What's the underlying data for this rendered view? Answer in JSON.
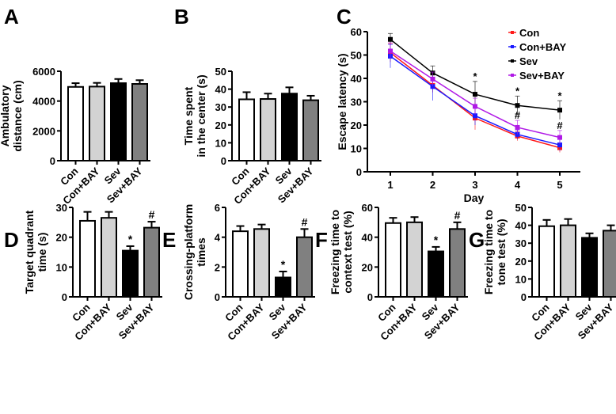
{
  "chart_data": [
    {
      "id": "A",
      "type": "bar",
      "ylabel": [
        "Ambulatory",
        "distance (cm)"
      ],
      "categories": [
        "Con",
        "Con+BAY",
        "Sev",
        "Sev+BAY"
      ],
      "values": [
        4950,
        4970,
        5200,
        5150
      ],
      "errors": [
        250,
        250,
        280,
        250
      ],
      "ylim": [
        0,
        6000
      ],
      "yticks": [
        0,
        2000,
        4000,
        6000
      ],
      "annotations": [
        "",
        "",
        "",
        ""
      ]
    },
    {
      "id": "B",
      "type": "bar",
      "ylabel": [
        "Time spent",
        "in the center (s)"
      ],
      "categories": [
        "Con",
        "Con+BAY",
        "Sev",
        "Sev+BAY"
      ],
      "values": [
        34.3,
        34.5,
        37.5,
        33.8
      ],
      "errors": [
        4,
        3,
        3.5,
        2.5
      ],
      "ylim": [
        0,
        50
      ],
      "yticks": [
        0,
        10,
        20,
        30,
        40,
        50
      ],
      "annotations": [
        "",
        "",
        "",
        ""
      ]
    },
    {
      "id": "C",
      "type": "line",
      "xlabel": "Day",
      "ylabel": "Escape latency (s)",
      "x": [
        1,
        2,
        3,
        4,
        5
      ],
      "ylim": [
        0,
        60
      ],
      "yticks": [
        0,
        10,
        20,
        30,
        40,
        50,
        60
      ],
      "legend": "top-right",
      "series": [
        {
          "name": "Con",
          "color": "#ff1a1a",
          "values": [
            51,
            37,
            23,
            15.3,
            10.3
          ],
          "errors": [
            4,
            3,
            5,
            2,
            2
          ]
        },
        {
          "name": "Con+BAY",
          "color": "#1a1aff",
          "values": [
            49.5,
            36.5,
            24,
            16,
            11.5
          ],
          "errors": [
            5,
            6,
            4,
            2,
            2.5
          ]
        },
        {
          "name": "Sev",
          "color": "#000000",
          "values": [
            56.7,
            42.3,
            33.2,
            28.4,
            26.4
          ],
          "errors": [
            2.5,
            3,
            5.5,
            4,
            4
          ]
        },
        {
          "name": "Sev+BAY",
          "color": "#b019e6",
          "values": [
            51.7,
            39.7,
            28,
            19,
            14.7
          ],
          "errors": [
            3.5,
            3,
            3.5,
            3,
            3
          ]
        }
      ],
      "annotations": [
        {
          "x": 3,
          "text": "*"
        },
        {
          "x": 4,
          "text": "*"
        },
        {
          "x": 4,
          "text": "#"
        },
        {
          "x": 5,
          "text": "*"
        },
        {
          "x": 5,
          "text": "#"
        }
      ]
    },
    {
      "id": "D",
      "type": "bar",
      "ylabel": [
        "Target quadrant",
        "time (s)"
      ],
      "categories": [
        "Con",
        "Con+BAY",
        "Sev",
        "Sev+BAY"
      ],
      "values": [
        25.5,
        26.5,
        15.5,
        23.2
      ],
      "errors": [
        3,
        2,
        1.5,
        2
      ],
      "ylim": [
        0,
        30
      ],
      "yticks": [
        0,
        10,
        20,
        30
      ],
      "annotations": [
        "",
        "",
        "*",
        "#"
      ]
    },
    {
      "id": "E",
      "type": "bar",
      "ylabel": [
        "Crossing-platform",
        "times"
      ],
      "categories": [
        "Con",
        "Con+BAY",
        "Sev",
        "Sev+BAY"
      ],
      "values": [
        4.4,
        4.55,
        1.3,
        4.0
      ],
      "errors": [
        0.35,
        0.3,
        0.4,
        0.55
      ],
      "ylim": [
        0,
        6
      ],
      "yticks": [
        0,
        2,
        4,
        6
      ],
      "annotations": [
        "",
        "",
        "*",
        "#"
      ]
    },
    {
      "id": "F",
      "type": "bar",
      "ylabel": [
        "Freezing time to",
        "context test (%)"
      ],
      "categories": [
        "Con",
        "Con+BAY",
        "Sev",
        "Sev+BAY"
      ],
      "values": [
        49.5,
        50,
        30.5,
        45.5
      ],
      "errors": [
        3.5,
        3.5,
        3,
        4.5
      ],
      "ylim": [
        0,
        60
      ],
      "yticks": [
        0,
        20,
        40,
        60
      ],
      "annotations": [
        "",
        "",
        "*",
        "#"
      ]
    },
    {
      "id": "G",
      "type": "bar",
      "ylabel": [
        "Freezing time to",
        "tone test (%)"
      ],
      "categories": [
        "Con",
        "Con+BAY",
        "Sev",
        "Sev+BAY"
      ],
      "values": [
        39.5,
        40,
        33,
        37
      ],
      "errors": [
        3.5,
        3.5,
        2.5,
        3
      ],
      "ylim": [
        0,
        50
      ],
      "yticks": [
        0,
        10,
        20,
        30,
        40,
        50
      ],
      "annotations": [
        "",
        "",
        "",
        ""
      ]
    }
  ],
  "bar_colors": [
    "#ffffff",
    "#d3d3d3",
    "#000000",
    "#808080"
  ]
}
